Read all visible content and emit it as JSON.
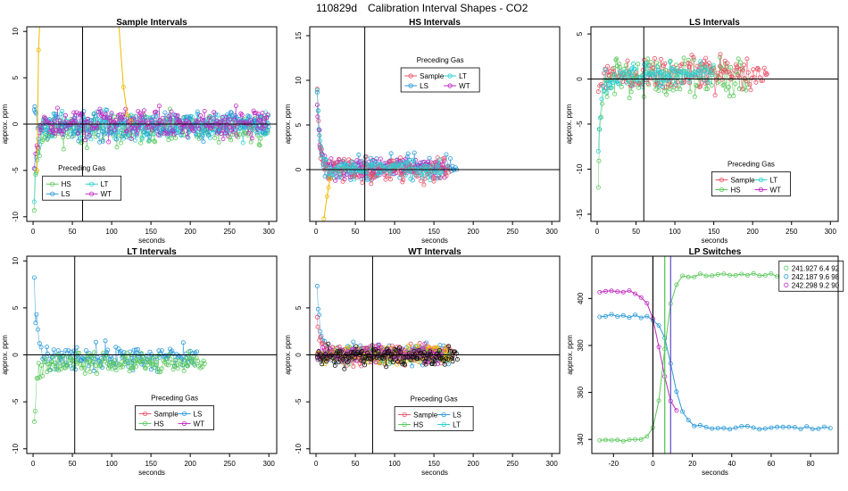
{
  "figure": {
    "title_id": "110829d",
    "title_text": "Calibration Interval Shapes - CO2"
  },
  "colors": {
    "Sample": "#e8556a",
    "HS": "#5cc85c",
    "LS": "#2a9ad8",
    "LT": "#2ad0d0",
    "WT": "#c02ac0",
    "orange": "#f0b800",
    "black": "#111111",
    "green_lp": "#5cc85c",
    "blue_lp": "#2a9ad8",
    "magenta_lp": "#c02ac0",
    "purple_line": "#6a5acd"
  },
  "chart_data": [
    {
      "id": "sample",
      "type": "scatter",
      "title": "Sample Intervals",
      "xlabel": "seconds",
      "ylabel": "approx. ppm",
      "xlim": [
        -8,
        310
      ],
      "ylim": [
        -10.5,
        10.5
      ],
      "xticks": [
        0,
        50,
        100,
        150,
        200,
        250,
        300
      ],
      "xtick_labels": [
        "0",
        "50",
        "100",
        "150",
        "200",
        "250",
        "300"
      ],
      "yticks": [
        -10,
        -5,
        0,
        5,
        10
      ],
      "ytick_labels": [
        "-10",
        "-5",
        "0",
        "5",
        "10"
      ],
      "vline": 63,
      "hline": 0,
      "legend": {
        "title": "Preceding Gas",
        "entries": [
          "HS",
          "LT",
          "LS",
          "WT"
        ],
        "anchor": [
          62,
          -5.8
        ],
        "cols": 2
      },
      "series": [
        {
          "name": "HS",
          "color": "HS",
          "xmax": 300,
          "start": -11,
          "tau": 4.5,
          "spread": 1.3,
          "offset": -0.6,
          "seed": 11
        },
        {
          "name": "LT",
          "color": "LT",
          "xmax": 300,
          "start": -10,
          "tau": 4,
          "spread": 1.2,
          "offset": -0.2,
          "seed": 12
        },
        {
          "name": "LS",
          "color": "LS",
          "xmax": 300,
          "start": 3,
          "tau": 3,
          "spread": 1.2,
          "offset": -0.1,
          "seed": 13
        },
        {
          "name": "WT",
          "color": "WT",
          "xmax": 300,
          "start": -7,
          "tau": 3,
          "spread": 1.3,
          "offset": 0.1,
          "seed": 14
        }
      ],
      "extra_lines": [
        {
          "color": "orange",
          "points": [
            [
              5,
              -5
            ],
            [
              7,
              8
            ],
            [
              9,
              12
            ]
          ]
        },
        {
          "color": "orange",
          "points": [
            [
              108,
              12
            ],
            [
              115,
              4
            ],
            [
              120,
              1
            ],
            [
              125,
              0.3
            ]
          ]
        }
      ]
    },
    {
      "id": "hs",
      "type": "scatter",
      "title": "HS Intervals",
      "xlabel": "seconds",
      "ylabel": "approx. ppm",
      "xlim": [
        -8,
        310
      ],
      "ylim": [
        -5.8,
        16
      ],
      "xticks": [
        0,
        50,
        100,
        150,
        200,
        250,
        300
      ],
      "xtick_labels": [
        "0",
        "50",
        "100",
        "150",
        "200",
        "250",
        "300"
      ],
      "yticks": [
        0,
        5,
        10,
        15
      ],
      "ytick_labels": [
        "0",
        "5",
        "10",
        "15"
      ],
      "vline": 62,
      "hline": 0,
      "legend": {
        "title": "Preceding Gas",
        "entries": [
          "Sample",
          "LT",
          "LS",
          "WT"
        ],
        "anchor": [
          158,
          11.2
        ],
        "cols": 2
      },
      "series": [
        {
          "name": "LS",
          "color": "LS",
          "xmax": 180,
          "start": 15.5,
          "tau": 3,
          "spread": 1.1,
          "offset": 0.3,
          "seed": 21
        },
        {
          "name": "WT",
          "color": "WT",
          "xmax": 165,
          "start": 11.5,
          "tau": 3,
          "spread": 1.0,
          "offset": 0.2,
          "seed": 22
        },
        {
          "name": "Sample",
          "color": "Sample",
          "xmax": 170,
          "start": 15,
          "tau": 3,
          "spread": 1.2,
          "offset": -0.1,
          "seed": 23
        },
        {
          "name": "LT",
          "color": "LT",
          "xmax": 160,
          "start": 15,
          "tau": 3,
          "spread": 0.9,
          "offset": 0.1,
          "seed": 24
        }
      ],
      "extra_lines": [
        {
          "color": "orange",
          "points": [
            [
              10,
              -5.5
            ],
            [
              14,
              -3
            ],
            [
              16,
              -2
            ],
            [
              18,
              -1
            ]
          ]
        }
      ]
    },
    {
      "id": "ls",
      "type": "scatter",
      "title": "LS Intervals",
      "xlabel": "seconds",
      "ylabel": "approx. ppm",
      "xlim": [
        -8,
        310
      ],
      "ylim": [
        -15.8,
        5.8
      ],
      "xticks": [
        0,
        50,
        100,
        150,
        200,
        250,
        300
      ],
      "xtick_labels": [
        "0",
        "50",
        "100",
        "150",
        "200",
        "250",
        "300"
      ],
      "yticks": [
        -15,
        -10,
        -5,
        0,
        5
      ],
      "ytick_labels": [
        "-15",
        "-10",
        "-5",
        "0",
        "5"
      ],
      "vline": 60,
      "hline": 0,
      "legend": {
        "title": "Preceding Gas",
        "entries": [
          "Sample",
          "LT",
          "HS",
          "WT"
        ],
        "anchor": [
          198,
          -10.5
        ],
        "cols": 2
      },
      "series": [
        {
          "name": "HS",
          "color": "HS",
          "xmax": 195,
          "start": -16,
          "tau": 4,
          "spread": 1.7,
          "offset": 0.3,
          "seed": 31
        },
        {
          "name": "Sample",
          "color": "Sample",
          "xmax": 220,
          "start": -3,
          "tau": 4,
          "spread": 1.5,
          "offset": 0.6,
          "seed": 32
        },
        {
          "name": "LT",
          "color": "LT",
          "xmax": 150,
          "start": -12,
          "tau": 4,
          "spread": 1.2,
          "offset": 0.4,
          "seed": 33
        }
      ],
      "extra_lines": []
    },
    {
      "id": "lt",
      "type": "scatter",
      "title": "LT Intervals",
      "xlabel": "seconds",
      "ylabel": "approx. ppm",
      "xlim": [
        -8,
        310
      ],
      "ylim": [
        -10.5,
        10.5
      ],
      "xticks": [
        0,
        50,
        100,
        150,
        200,
        250,
        300
      ],
      "xtick_labels": [
        "0",
        "50",
        "100",
        "150",
        "200",
        "250",
        "300"
      ],
      "yticks": [
        -10,
        -5,
        0,
        5,
        10
      ],
      "ytick_labels": [
        "-10",
        "-5",
        "0",
        "5",
        "10"
      ],
      "vline": 53,
      "hline": 0,
      "legend": {
        "title": "Preceding Gas",
        "entries": [
          "Sample",
          "LS",
          "HS",
          "WT"
        ],
        "anchor": [
          180,
          -5.6
        ],
        "cols": 2
      },
      "series": [
        {
          "name": "LS",
          "color": "LS",
          "xmax": 210,
          "start": 11,
          "tau": 4,
          "spread": 1.1,
          "offset": -0.3,
          "seed": 41
        },
        {
          "name": "HS",
          "color": "HS",
          "xmax": 220,
          "start": -9,
          "tau": 4,
          "spread": 0.9,
          "offset": -0.9,
          "seed": 42
        }
      ],
      "extra_lines": []
    },
    {
      "id": "wt",
      "type": "scatter",
      "title": "WT Intervals",
      "xlabel": "seconds",
      "ylabel": "approx. ppm",
      "xlim": [
        -8,
        310
      ],
      "ylim": [
        -10.5,
        10.5
      ],
      "xticks": [
        0,
        50,
        100,
        150,
        200,
        250,
        300
      ],
      "xtick_labels": [
        "0",
        "50",
        "100",
        "150",
        "200",
        "250",
        "300"
      ],
      "yticks": [
        -10,
        -5,
        0,
        5
      ],
      "ytick_labels": [
        "-10",
        "-5",
        "0",
        "5"
      ],
      "vline": 72,
      "hline": 0,
      "legend": {
        "title": "Preceding Gas",
        "entries": [
          "Sample",
          "LS",
          "HS",
          "LT"
        ],
        "anchor": [
          150,
          -5.7
        ],
        "cols": 2
      },
      "series": [
        {
          "name": "LS",
          "color": "LS",
          "xmax": 170,
          "start": 9.5,
          "tau": 4,
          "spread": 0.9,
          "offset": 0.2,
          "seed": 51
        },
        {
          "name": "Sample",
          "color": "Sample",
          "xmax": 175,
          "start": 5,
          "tau": 4,
          "spread": 0.9,
          "offset": 0.1,
          "seed": 52
        },
        {
          "name": "HS",
          "color": "HS",
          "xmax": 170,
          "start": 1,
          "tau": 3,
          "spread": 0.8,
          "offset": 0,
          "seed": 53
        },
        {
          "name": "orange",
          "color": "orange",
          "xmax": 170,
          "start": 0,
          "tau": 3,
          "spread": 0.8,
          "offset": 0,
          "seed": 54
        },
        {
          "name": "WT",
          "color": "WT",
          "xmax": 160,
          "start": 0,
          "tau": 3,
          "spread": 0.7,
          "offset": 0.1,
          "seed": 55
        },
        {
          "name": "black",
          "color": "black",
          "xmax": 180,
          "start": 0,
          "tau": 3,
          "spread": 0.8,
          "offset": -0.1,
          "seed": 56
        }
      ],
      "extra_lines": []
    },
    {
      "id": "lp",
      "type": "line",
      "title": "LP Switches",
      "xlabel": "seconds",
      "ylabel": "approx. ppm",
      "xlim": [
        -31,
        94
      ],
      "ylim": [
        334,
        418
      ],
      "xticks": [
        -20,
        0,
        20,
        40,
        60,
        80
      ],
      "xtick_labels": [
        "-20",
        "0",
        "20",
        "40",
        "60",
        "80"
      ],
      "yticks": [
        340,
        360,
        380,
        400
      ],
      "ytick_labels": [
        "340",
        "360",
        "380",
        "400"
      ],
      "vlines": [
        {
          "x": 0,
          "color": "black"
        },
        {
          "x": 6,
          "color": "green_lp"
        },
        {
          "x": 9,
          "color": "purple_line"
        }
      ],
      "legend": {
        "entries": [
          "241.927 6.4 92",
          "242.187 9.6 98",
          "242.298 9.2 90"
        ],
        "colors": [
          "green_lp",
          "blue_lp",
          "magenta_lp"
        ],
        "anchor": [
          64,
          416
        ]
      },
      "series": [
        {
          "name": "241.927 6.4 92",
          "color": "green_lp",
          "x0": -27,
          "x1": 90,
          "type": "rise",
          "pre": 340,
          "post": 410,
          "t0": 5.5,
          "tau": 2.2
        },
        {
          "name": "242.187 9.6 98",
          "color": "blue_lp",
          "x0": -27,
          "x1": 90,
          "type": "fall",
          "pre": 392.5,
          "post": 345,
          "t0": 10,
          "tau": 3
        },
        {
          "name": "242.298 9.2 90",
          "color": "magenta_lp",
          "x0": -27,
          "x1": 12,
          "type": "fall",
          "pre": 403,
          "post": 348,
          "t0": 4,
          "tau": 3
        }
      ]
    }
  ]
}
